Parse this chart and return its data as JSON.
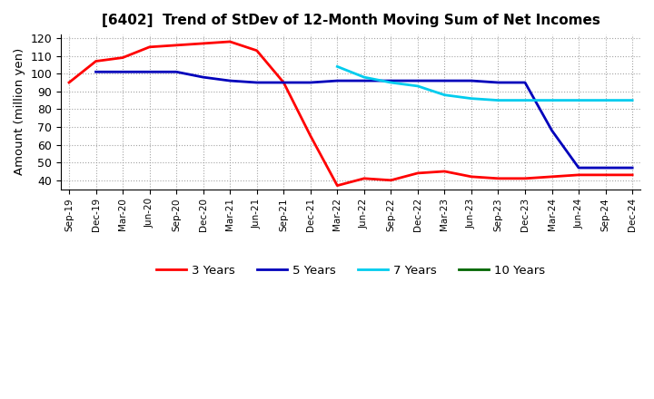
{
  "title": "[6402]  Trend of StDev of 12-Month Moving Sum of Net Incomes",
  "ylabel": "Amount (million yen)",
  "background_color": "#ffffff",
  "grid_color": "#999999",
  "ylim": [
    35,
    122
  ],
  "yticks": [
    40,
    50,
    60,
    70,
    80,
    90,
    100,
    110,
    120
  ],
  "x_labels": [
    "Sep-19",
    "Dec-19",
    "Mar-20",
    "Jun-20",
    "Sep-20",
    "Dec-20",
    "Mar-21",
    "Jun-21",
    "Sep-21",
    "Dec-21",
    "Mar-22",
    "Jun-22",
    "Sep-22",
    "Dec-22",
    "Mar-23",
    "Jun-23",
    "Sep-23",
    "Dec-23",
    "Mar-24",
    "Jun-24",
    "Sep-24",
    "Dec-24"
  ],
  "series": {
    "3 Years": {
      "color": "#ff0000",
      "data_x": [
        0,
        1,
        2,
        3,
        4,
        5,
        6,
        7,
        8,
        9,
        10,
        11,
        12,
        13,
        14,
        15,
        16,
        17,
        18,
        19,
        20,
        21
      ],
      "data_y": [
        95,
        107,
        109,
        115,
        116,
        117,
        118,
        113,
        95,
        65,
        37,
        41,
        40,
        44,
        45,
        42,
        41,
        41,
        42,
        43,
        43,
        43
      ]
    },
    "5 Years": {
      "color": "#0000bb",
      "data_x": [
        1,
        2,
        3,
        4,
        5,
        6,
        7,
        8,
        9,
        10,
        11,
        12,
        13,
        14,
        15,
        16,
        17,
        18,
        19,
        20,
        21
      ],
      "data_y": [
        101,
        101,
        101,
        101,
        98,
        96,
        95,
        95,
        95,
        96,
        96,
        96,
        96,
        96,
        96,
        95,
        95,
        68,
        47,
        47,
        47
      ]
    },
    "7 Years": {
      "color": "#00ccee",
      "data_x": [
        10,
        11,
        12,
        13,
        14,
        15,
        16,
        17,
        18,
        19,
        20,
        21
      ],
      "data_y": [
        104,
        98,
        95,
        93,
        88,
        86,
        85,
        85,
        85,
        85,
        85,
        85
      ]
    },
    "10 Years": {
      "color": "#006600",
      "data_x": [],
      "data_y": []
    }
  },
  "legend_labels": [
    "3 Years",
    "5 Years",
    "7 Years",
    "10 Years"
  ],
  "legend_colors": [
    "#ff0000",
    "#0000bb",
    "#00ccee",
    "#006600"
  ]
}
